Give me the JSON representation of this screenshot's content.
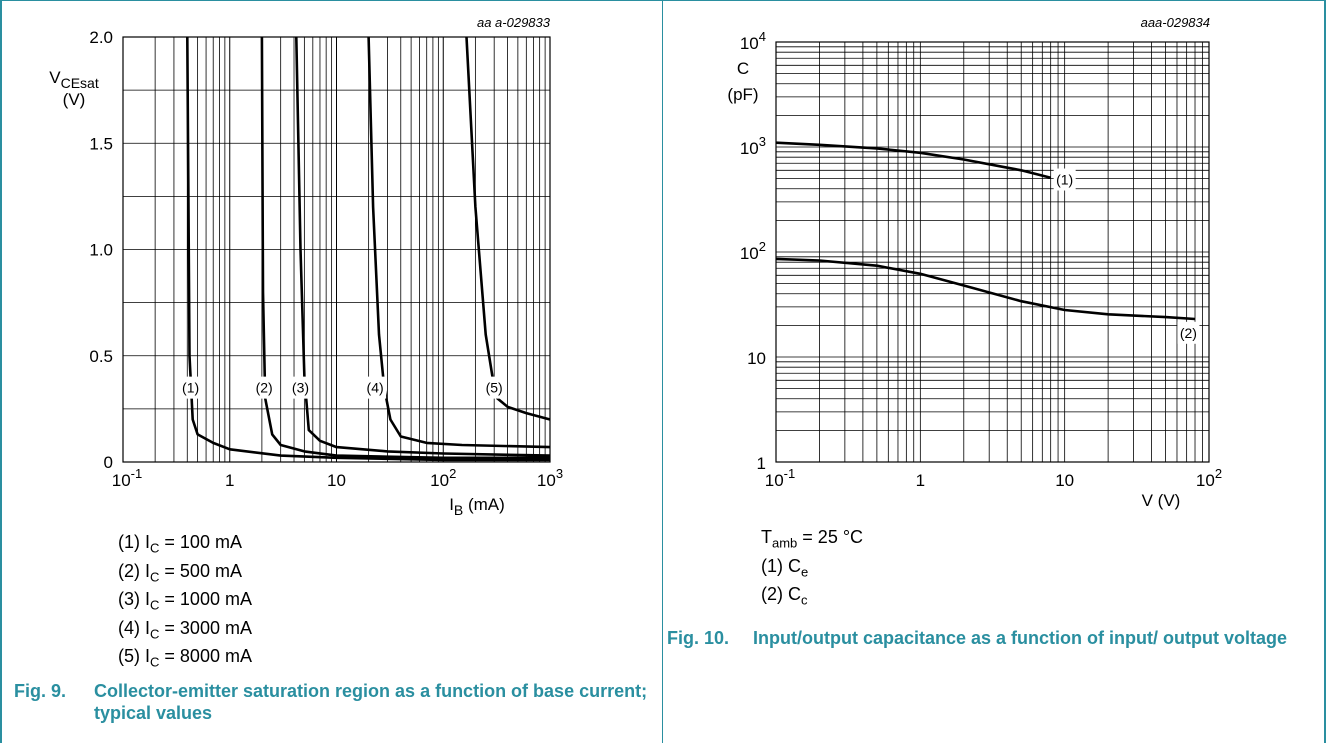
{
  "fig9": {
    "code": "aa a-029833",
    "y_label_main": "V",
    "y_label_sub": "CEsat",
    "y_label_unit": "(V)",
    "x_label_main": "I",
    "x_label_sub": "B",
    "x_label_unit": " (mA)",
    "legend": [
      {
        "pre": "(1) I",
        "sub": "C",
        "post": " = 100 mA"
      },
      {
        "pre": "(2) I",
        "sub": "C",
        "post": " = 500 mA"
      },
      {
        "pre": "(3) I",
        "sub": "C",
        "post": " = 1000 mA"
      },
      {
        "pre": "(4) I",
        "sub": "C",
        "post": " = 3000 mA"
      },
      {
        "pre": "(5) I",
        "sub": "C",
        "post": " = 8000 mA"
      }
    ],
    "caption_num": "Fig. 9.",
    "caption_text": "Collector-emitter saturation region as a function of base current; typical values"
  },
  "fig10": {
    "code": "aaa-029834",
    "y_label_main": "C",
    "y_label_unit": "(pF)",
    "x_label": "V (V)",
    "legend_tamb_pre": "T",
    "legend_tamb_sub": "amb",
    "legend_tamb_post": " = 25 °C",
    "legend": [
      {
        "pre": "(1) C",
        "sub": "e"
      },
      {
        "pre": "(2) C",
        "sub": "c"
      }
    ],
    "caption_num": "Fig. 10.",
    "caption_text": "Input/output capacitance as a function of input/ output voltage"
  },
  "chart_data": [
    {
      "type": "line",
      "x_scale": "log",
      "xlim": [
        0.1,
        1000
      ],
      "ylim": [
        0,
        2.0
      ],
      "x_ticks": [
        {
          "base": "10",
          "exp": "-1"
        },
        {
          "text": "1"
        },
        {
          "text": "10"
        },
        {
          "base": "10",
          "exp": "2"
        },
        {
          "base": "10",
          "exp": "3"
        }
      ],
      "y_ticks": [
        "0",
        "0.5",
        "1.0",
        "1.5",
        "2.0"
      ],
      "y_tick_values": [
        0,
        0.5,
        1.0,
        1.5,
        2.0
      ],
      "grid": true,
      "series": [
        {
          "name": "(1)",
          "x": [
            0.4,
            0.42,
            0.45,
            0.5,
            0.7,
            1,
            3,
            10,
            100,
            1000
          ],
          "y": [
            2.0,
            0.5,
            0.2,
            0.13,
            0.09,
            0.06,
            0.03,
            0.02,
            0.01,
            0.01
          ]
        },
        {
          "name": "(2)",
          "x": [
            2.0,
            2.05,
            2.15,
            2.5,
            3,
            5,
            10,
            100,
            1000
          ],
          "y": [
            2.0,
            0.8,
            0.3,
            0.13,
            0.08,
            0.05,
            0.03,
            0.02,
            0.02
          ]
        },
        {
          "name": "(3)",
          "x": [
            4.2,
            4.6,
            5.0,
            5.5,
            7,
            10,
            30,
            100,
            1000
          ],
          "y": [
            2.0,
            1.0,
            0.4,
            0.15,
            0.1,
            0.07,
            0.05,
            0.04,
            0.03
          ]
        },
        {
          "name": "(4)",
          "x": [
            20,
            22,
            25,
            28,
            32,
            40,
            70,
            150,
            1000
          ],
          "y": [
            2.0,
            1.2,
            0.6,
            0.35,
            0.2,
            0.12,
            0.09,
            0.08,
            0.07
          ]
        },
        {
          "name": "(5)",
          "x": [
            165,
            200,
            250,
            300,
            320,
            400,
            600,
            1000
          ],
          "y": [
            2.0,
            1.2,
            0.6,
            0.35,
            0.3,
            0.26,
            0.23,
            0.2
          ]
        }
      ],
      "label_positions": [
        {
          "x": 0.43,
          "y": 0.35
        },
        {
          "x": 2.1,
          "y": 0.35
        },
        {
          "x": 4.6,
          "y": 0.35
        },
        {
          "x": 23,
          "y": 0.35
        },
        {
          "x": 300,
          "y": 0.35
        }
      ]
    },
    {
      "type": "line",
      "x_scale": "log",
      "y_scale": "log",
      "xlim": [
        0.1,
        100
      ],
      "ylim": [
        1,
        10000
      ],
      "x_ticks": [
        {
          "base": "10",
          "exp": "-1"
        },
        {
          "text": "1"
        },
        {
          "text": "10"
        },
        {
          "base": "10",
          "exp": "2"
        }
      ],
      "y_ticks": [
        {
          "text": "1"
        },
        {
          "text": "10"
        },
        {
          "base": "10",
          "exp": "2"
        },
        {
          "base": "10",
          "exp": "3"
        },
        {
          "base": "10",
          "exp": "4"
        }
      ],
      "grid": true,
      "series": [
        {
          "name": "(1)",
          "x": [
            0.1,
            0.2,
            0.5,
            1,
            2,
            5,
            8
          ],
          "y": [
            1100,
            1050,
            970,
            880,
            760,
            600,
            510
          ]
        },
        {
          "name": "(2)",
          "x": [
            0.1,
            0.2,
            0.5,
            1,
            2,
            5,
            10,
            20,
            50,
            80
          ],
          "y": [
            86,
            83,
            74,
            62,
            48,
            34,
            28,
            25.5,
            24,
            23
          ]
        }
      ],
      "label_positions": [
        {
          "x": 10,
          "y": 490
        },
        {
          "x": 72,
          "y": 17
        }
      ]
    }
  ]
}
